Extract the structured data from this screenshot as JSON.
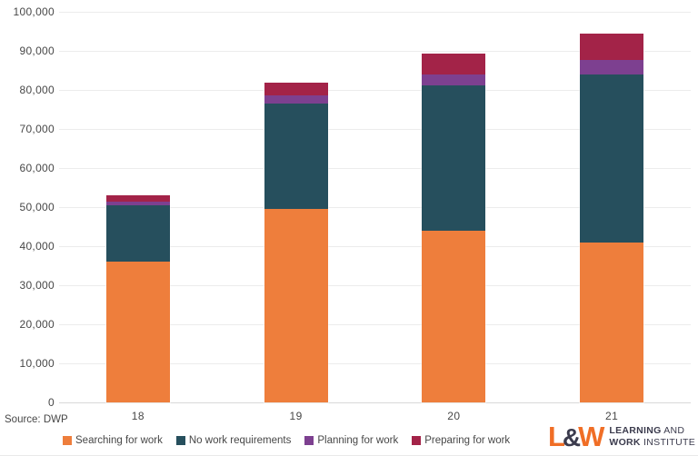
{
  "source_label": "Source: DWP",
  "chart_data": {
    "type": "bar",
    "stacked": true,
    "title": "",
    "xlabel": "",
    "ylabel": "",
    "grid": true,
    "legend_position": "bottom",
    "categories": [
      "18",
      "19",
      "20",
      "21"
    ],
    "series": [
      {
        "name": "Searching for work",
        "color": "#EE7E3C",
        "values": [
          36000,
          49500,
          44000,
          41000
        ]
      },
      {
        "name": "No work requirements",
        "color": "#264F5D",
        "values": [
          14500,
          27000,
          37200,
          42900
        ]
      },
      {
        "name": "Planning for work",
        "color": "#7D4090",
        "values": [
          1000,
          2000,
          2800,
          3700
        ]
      },
      {
        "name": "Preparing for work",
        "color": "#A32348",
        "values": [
          1500,
          3400,
          5300,
          6800
        ]
      }
    ],
    "totals": [
      53000,
      81900,
      89300,
      94400
    ],
    "ylim": [
      0,
      100000
    ],
    "ytick_step": 10000,
    "ytick_labels": [
      "0",
      "10,000",
      "20,000",
      "30,000",
      "40,000",
      "50,000",
      "60,000",
      "70,000",
      "80,000",
      "90,000",
      "100,000"
    ]
  },
  "logo": {
    "mark_l": "L",
    "mark_amp": "&",
    "mark_w": "W",
    "line1_bold": "LEARNING",
    "line1_rest": " AND",
    "line2_bold": "WORK",
    "line2_rest": " INSTITUTE",
    "orange": "#F06E26",
    "dark": "#3B3B4D"
  },
  "colors": {
    "background": "#FFFFFF",
    "grid": "#ECECEC",
    "axis_line": "#D8D8D8",
    "text": "#474747"
  }
}
